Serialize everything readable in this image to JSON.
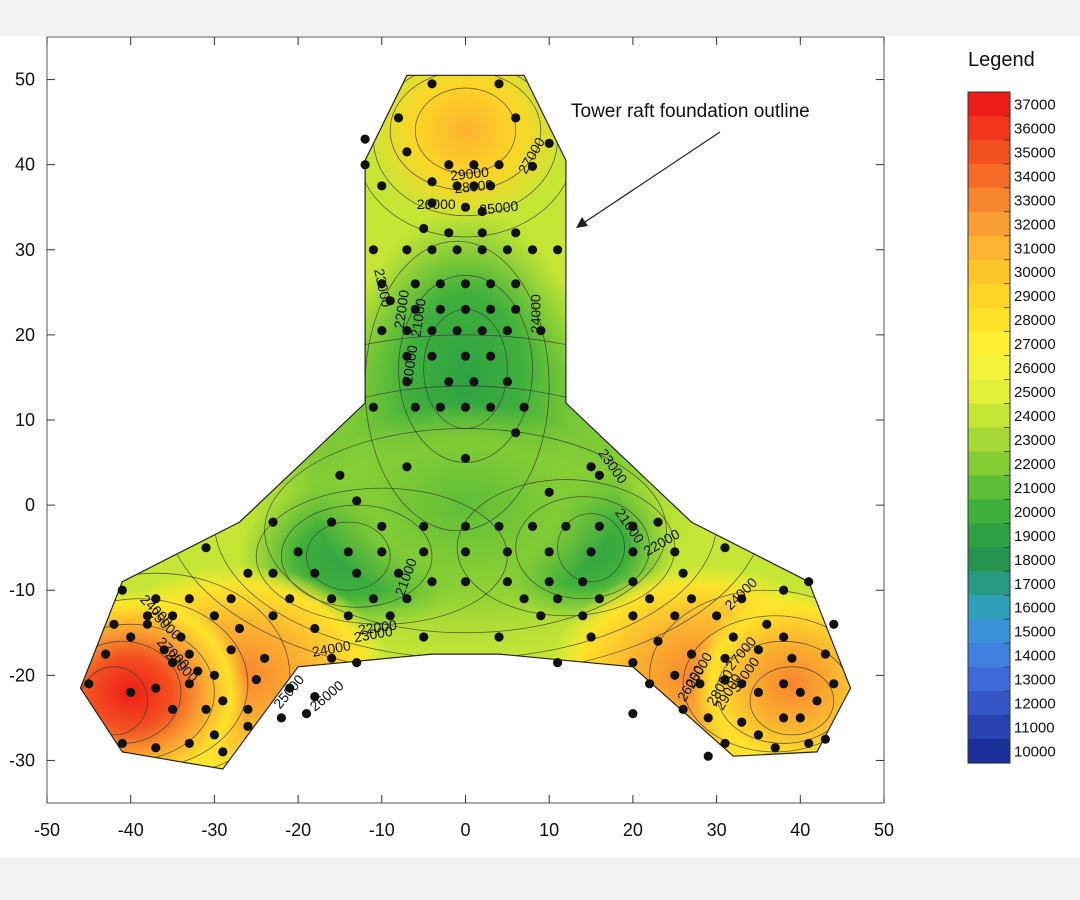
{
  "chart_data": {
    "type": "heatmap",
    "title": "",
    "xlabel": "",
    "ylabel": "",
    "xlim": [
      -50,
      50
    ],
    "ylim": [
      -35,
      55
    ],
    "x_ticks": [
      -50,
      -40,
      -30,
      -20,
      -10,
      0,
      10,
      20,
      30,
      40,
      50
    ],
    "y_ticks": [
      -30,
      -20,
      -10,
      0,
      10,
      20,
      30,
      40,
      50
    ],
    "outline": [
      [
        -12,
        40.5
      ],
      [
        -7,
        50.5
      ],
      [
        7,
        50.5
      ],
      [
        12,
        40.5
      ],
      [
        12,
        12
      ],
      [
        27,
        -2
      ],
      [
        41,
        -9
      ],
      [
        46,
        -21.5
      ],
      [
        42,
        -29
      ],
      [
        32,
        -29.5
      ],
      [
        20,
        -19
      ],
      [
        4,
        -17.5
      ],
      [
        -4,
        -17.5
      ],
      [
        -20,
        -19
      ],
      [
        -29,
        -31
      ],
      [
        -41,
        -29
      ],
      [
        -46,
        -21.5
      ],
      [
        -41,
        -9
      ],
      [
        -27,
        -2
      ],
      [
        -12,
        12
      ]
    ],
    "annotation": "Tower raft foundation outline",
    "legend": {
      "title": "Legend",
      "values": [
        37000,
        36000,
        35000,
        34000,
        33000,
        32000,
        31000,
        30000,
        29000,
        28000,
        27000,
        26000,
        25000,
        24000,
        23000,
        22000,
        21000,
        20000,
        19000,
        18000,
        17000,
        16000,
        15000,
        14000,
        13000,
        12000,
        11000,
        10000
      ],
      "colors": [
        "#ee1c18",
        "#f1361c",
        "#f35020",
        "#f56a26",
        "#f7842e",
        "#f99e32",
        "#fbb330",
        "#fcc52a",
        "#fdd526",
        "#fee22a",
        "#fef134",
        "#f4f43c",
        "#e2f03a",
        "#c6e636",
        "#a6d935",
        "#82cc35",
        "#5ebe38",
        "#40b03c",
        "#2ea243",
        "#26944f",
        "#289a84",
        "#30a0b8",
        "#3c92d8",
        "#4080e0",
        "#3c6ad6",
        "#3456c6",
        "#2842b2",
        "#1a2e98"
      ]
    },
    "contour_labels": [
      {
        "text": "29000",
        "x": 0.5,
        "y": 38.8,
        "rotate": -6
      },
      {
        "text": "28000",
        "x": 1,
        "y": 37.3,
        "rotate": -6
      },
      {
        "text": "26000",
        "x": -3.5,
        "y": 35.2,
        "rotate": 0
      },
      {
        "text": "25000",
        "x": 4,
        "y": 34.8,
        "rotate": -6
      },
      {
        "text": "27000",
        "x": 8,
        "y": 41,
        "rotate": -60
      },
      {
        "text": "23000",
        "x": -10,
        "y": 25.5,
        "rotate": 78
      },
      {
        "text": "22000",
        "x": -7.5,
        "y": 23,
        "rotate": -82
      },
      {
        "text": "21000",
        "x": -5.5,
        "y": 22,
        "rotate": -82
      },
      {
        "text": "20000",
        "x": -6.5,
        "y": 16.5,
        "rotate": -82
      },
      {
        "text": "24000",
        "x": 8.5,
        "y": 22.5,
        "rotate": -90
      },
      {
        "text": "23000",
        "x": 17.5,
        "y": 4.5,
        "rotate": 55
      },
      {
        "text": "21000",
        "x": 19.5,
        "y": -2.5,
        "rotate": 55
      },
      {
        "text": "22000",
        "x": 23.5,
        "y": -4.5,
        "rotate": -30
      },
      {
        "text": "21000",
        "x": -7,
        "y": -8.5,
        "rotate": -70
      },
      {
        "text": "22000",
        "x": -10.5,
        "y": -14.5,
        "rotate": -8
      },
      {
        "text": "23000",
        "x": -11,
        "y": -15.3,
        "rotate": -10
      },
      {
        "text": "24000",
        "x": -16,
        "y": -17,
        "rotate": -10
      },
      {
        "text": "25000",
        "x": -21,
        "y": -22,
        "rotate": -50
      },
      {
        "text": "26000",
        "x": -16.5,
        "y": -22.5,
        "rotate": -40
      },
      {
        "text": "24000",
        "x": -37,
        "y": -12.5,
        "rotate": 45
      },
      {
        "text": "25000",
        "x": -36,
        "y": -14,
        "rotate": 45
      },
      {
        "text": "27000",
        "x": -35,
        "y": -17.5,
        "rotate": 45
      },
      {
        "text": "28000",
        "x": -34,
        "y": -19,
        "rotate": 45
      },
      {
        "text": "24000",
        "x": 33,
        "y": -10.5,
        "rotate": -45
      },
      {
        "text": "25000",
        "x": 28,
        "y": -19.5,
        "rotate": -60
      },
      {
        "text": "26000",
        "x": 27,
        "y": -21,
        "rotate": -60
      },
      {
        "text": "27000",
        "x": 33,
        "y": -17.5,
        "rotate": -50
      },
      {
        "text": "28000",
        "x": 30.5,
        "y": -21.5,
        "rotate": -60
      },
      {
        "text": "29000",
        "x": 31.5,
        "y": -22,
        "rotate": -60
      },
      {
        "text": "31000",
        "x": 33.5,
        "y": -20,
        "rotate": -55
      }
    ],
    "points": [
      [
        -4,
        49.5
      ],
      [
        4,
        49.5
      ],
      [
        -8,
        45.5
      ],
      [
        6,
        45.5
      ],
      [
        -12,
        43
      ],
      [
        -7,
        41.5
      ],
      [
        -2,
        40
      ],
      [
        1,
        40
      ],
      [
        4,
        40
      ],
      [
        10,
        42.5
      ],
      [
        8,
        39.8
      ],
      [
        -12,
        40
      ],
      [
        -10,
        37.5
      ],
      [
        -4,
        38
      ],
      [
        -1,
        37.5
      ],
      [
        1,
        37.5
      ],
      [
        3,
        37.5
      ],
      [
        -4,
        35.5
      ],
      [
        0,
        35
      ],
      [
        2,
        34.5
      ],
      [
        -5,
        32.5
      ],
      [
        -2,
        32
      ],
      [
        2,
        32
      ],
      [
        6,
        32
      ],
      [
        11,
        30
      ],
      [
        -11,
        30
      ],
      [
        -7,
        30
      ],
      [
        -4,
        30
      ],
      [
        -1,
        30
      ],
      [
        2,
        30
      ],
      [
        5,
        30
      ],
      [
        8,
        30
      ],
      [
        -10,
        26
      ],
      [
        -6,
        26
      ],
      [
        -3,
        26
      ],
      [
        0,
        26
      ],
      [
        3,
        26
      ],
      [
        6,
        26
      ],
      [
        -9,
        24
      ],
      [
        -6,
        23
      ],
      [
        -3,
        23
      ],
      [
        0,
        23
      ],
      [
        3,
        23
      ],
      [
        6,
        23
      ],
      [
        -10,
        20.5
      ],
      [
        -7,
        20.5
      ],
      [
        -4,
        20.5
      ],
      [
        -1,
        20.5
      ],
      [
        2,
        20.5
      ],
      [
        5,
        20.5
      ],
      [
        9,
        20.5
      ],
      [
        -7,
        17.5
      ],
      [
        -4,
        17.5
      ],
      [
        0,
        17.5
      ],
      [
        3,
        17.5
      ],
      [
        -7,
        14.5
      ],
      [
        -2,
        14.5
      ],
      [
        1,
        14.5
      ],
      [
        5,
        14.5
      ],
      [
        -11,
        11.5
      ],
      [
        -6,
        11.5
      ],
      [
        -3,
        11.5
      ],
      [
        0,
        11.5
      ],
      [
        3,
        11.5
      ],
      [
        7,
        11.5
      ],
      [
        6,
        8.5
      ],
      [
        0,
        5.5
      ],
      [
        -7,
        4.5
      ],
      [
        15,
        4.5
      ],
      [
        16,
        3.5
      ],
      [
        -15,
        3.5
      ],
      [
        10,
        1.5
      ],
      [
        -13,
        0.5
      ],
      [
        -16,
        -2
      ],
      [
        -10,
        -2.5
      ],
      [
        -5,
        -2.5
      ],
      [
        0,
        -2.5
      ],
      [
        4,
        -2.5
      ],
      [
        8,
        -2.5
      ],
      [
        12,
        -2.5
      ],
      [
        16,
        -2.5
      ],
      [
        20,
        -2.5
      ],
      [
        -23,
        -2
      ],
      [
        23,
        -2
      ],
      [
        -31,
        -5
      ],
      [
        31,
        -5
      ],
      [
        -20,
        -5.5
      ],
      [
        -14,
        -5.5
      ],
      [
        -10,
        -5.5
      ],
      [
        -5,
        -5.5
      ],
      [
        0,
        -5.5
      ],
      [
        5,
        -5.5
      ],
      [
        10,
        -5.5
      ],
      [
        15,
        -5.5
      ],
      [
        20,
        -5.5
      ],
      [
        25,
        -5.5
      ],
      [
        -26,
        -8
      ],
      [
        -23,
        -8
      ],
      [
        -18,
        -8
      ],
      [
        -13,
        -8
      ],
      [
        -8,
        -8
      ],
      [
        -4,
        -9
      ],
      [
        0,
        -9
      ],
      [
        5,
        -9
      ],
      [
        10,
        -9
      ],
      [
        14,
        -9
      ],
      [
        20,
        -9
      ],
      [
        26,
        -8
      ],
      [
        -33,
        -11
      ],
      [
        -28,
        -11
      ],
      [
        -21,
        -11
      ],
      [
        -16,
        -11
      ],
      [
        -11,
        -11
      ],
      [
        -7,
        -11
      ],
      [
        7,
        -11
      ],
      [
        11,
        -11
      ],
      [
        16,
        -11
      ],
      [
        22,
        -11
      ],
      [
        27,
        -11
      ],
      [
        33,
        -11
      ],
      [
        -41,
        -10
      ],
      [
        -37,
        -11
      ],
      [
        -38,
        -13
      ],
      [
        -42,
        -14
      ],
      [
        -35,
        -13
      ],
      [
        -30,
        -13
      ],
      [
        -23,
        -13
      ],
      [
        -14,
        -13
      ],
      [
        -9,
        -13
      ],
      [
        9,
        -13
      ],
      [
        14,
        -13
      ],
      [
        20,
        -13
      ],
      [
        25,
        -13
      ],
      [
        30,
        -13
      ],
      [
        38,
        -10
      ],
      [
        41,
        -9
      ],
      [
        44,
        -14
      ],
      [
        -38,
        -14
      ],
      [
        -40,
        -15.5
      ],
      [
        -34,
        -15.5
      ],
      [
        -27,
        -14.5
      ],
      [
        -18,
        -14.5
      ],
      [
        -5,
        -15.5
      ],
      [
        4,
        -15.5
      ],
      [
        15,
        -15.5
      ],
      [
        23,
        -16
      ],
      [
        32,
        -15.5
      ],
      [
        36,
        -14
      ],
      [
        38,
        -15.5
      ],
      [
        -43,
        -17.5
      ],
      [
        -36,
        -17
      ],
      [
        -33,
        -17.5
      ],
      [
        -28,
        -17
      ],
      [
        -24,
        -18
      ],
      [
        -16,
        -18
      ],
      [
        11,
        -18.5
      ],
      [
        20,
        -18.5
      ],
      [
        27,
        -17.5
      ],
      [
        31,
        -18
      ],
      [
        35,
        -17
      ],
      [
        39,
        -18
      ],
      [
        43,
        -17.5
      ],
      [
        -35,
        -18.5
      ],
      [
        -32,
        -19.5
      ],
      [
        -30,
        -20
      ],
      [
        -25,
        -20.5
      ],
      [
        -21,
        -21.5
      ],
      [
        -19,
        -24.5
      ],
      [
        -13,
        -18.5
      ],
      [
        22,
        -21
      ],
      [
        25,
        -20
      ],
      [
        28,
        -21
      ],
      [
        31,
        -20.5
      ],
      [
        33,
        -21
      ],
      [
        35,
        -22
      ],
      [
        38,
        -21
      ],
      [
        40,
        -22
      ],
      [
        42,
        -23
      ],
      [
        -45,
        -21
      ],
      [
        -40,
        -22
      ],
      [
        -37,
        -21.5
      ],
      [
        -33,
        -21
      ],
      [
        -29,
        -23
      ],
      [
        -26,
        -24
      ],
      [
        -31,
        -24
      ],
      [
        -35,
        -24
      ],
      [
        -30,
        -27
      ],
      [
        -33,
        -28
      ],
      [
        -37,
        -28.5
      ],
      [
        -41,
        -28
      ],
      [
        -29,
        -29
      ],
      [
        -26,
        -26
      ],
      [
        -22,
        -25
      ],
      [
        -18,
        -22.5
      ],
      [
        20,
        -24.5
      ],
      [
        29,
        -25
      ],
      [
        33,
        -25.5
      ],
      [
        35,
        -27
      ],
      [
        29,
        -29.5
      ],
      [
        37,
        -28.5
      ],
      [
        41,
        -28
      ],
      [
        38,
        -25
      ],
      [
        31,
        -28
      ],
      [
        26,
        -24
      ],
      [
        40,
        -25
      ],
      [
        43,
        -27.5
      ],
      [
        44,
        -21
      ]
    ]
  }
}
